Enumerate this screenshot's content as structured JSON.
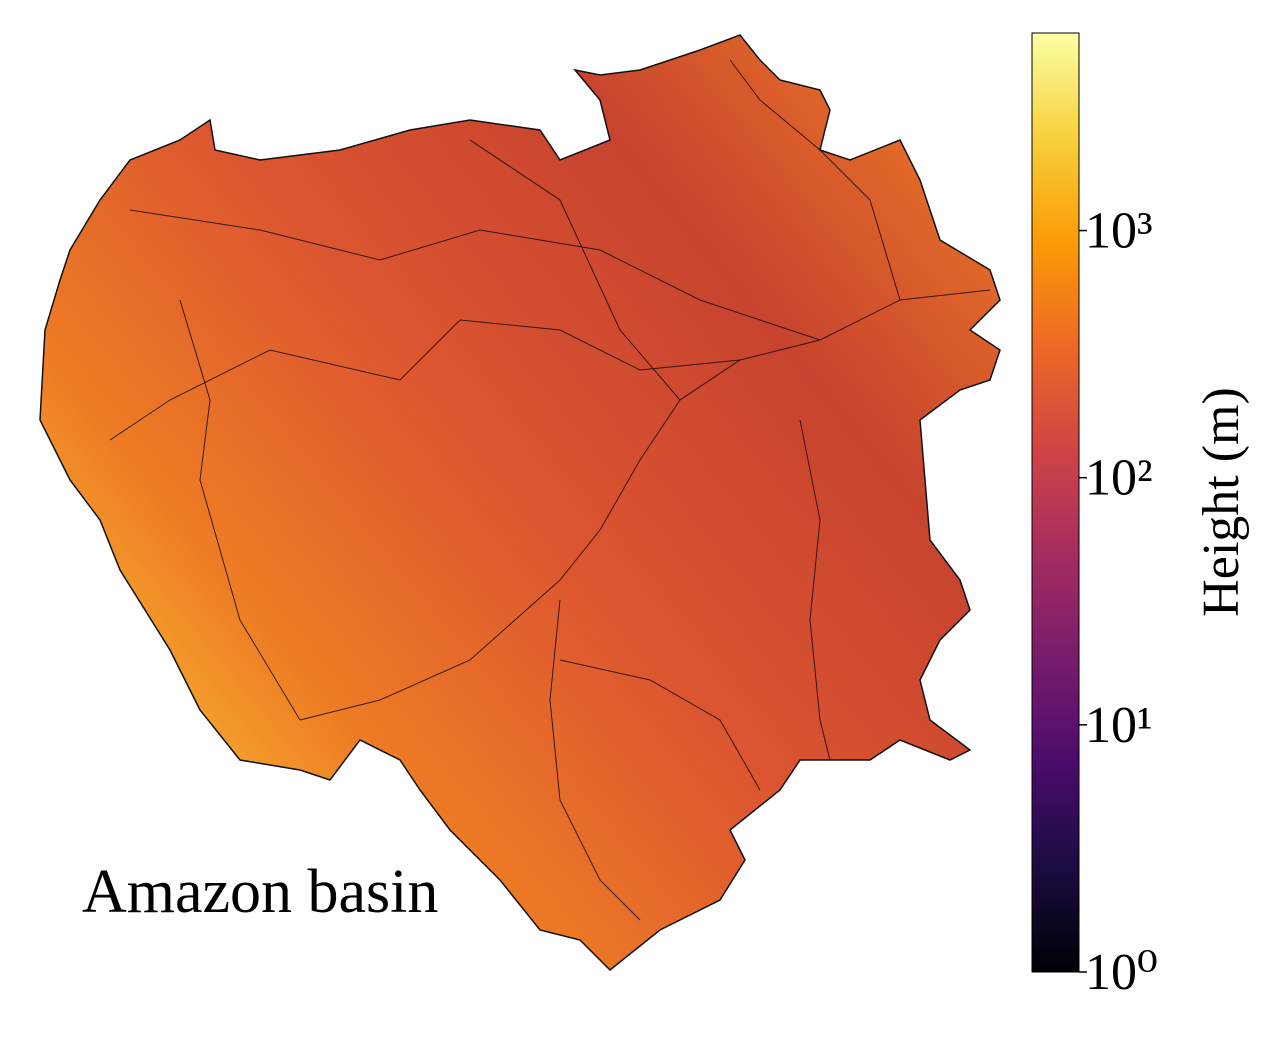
{
  "map": {
    "title": "Amazon basin"
  },
  "colorbar": {
    "label": "Height (m)",
    "scale": "log",
    "colormap": "inferno",
    "clim": [
      1,
      6300
    ],
    "ticks": [
      {
        "value": 1,
        "label": "10⁰"
      },
      {
        "value": 10,
        "label": "10¹"
      },
      {
        "value": 100,
        "label": "10²"
      },
      {
        "value": 1000,
        "label": "10³"
      }
    ]
  }
}
